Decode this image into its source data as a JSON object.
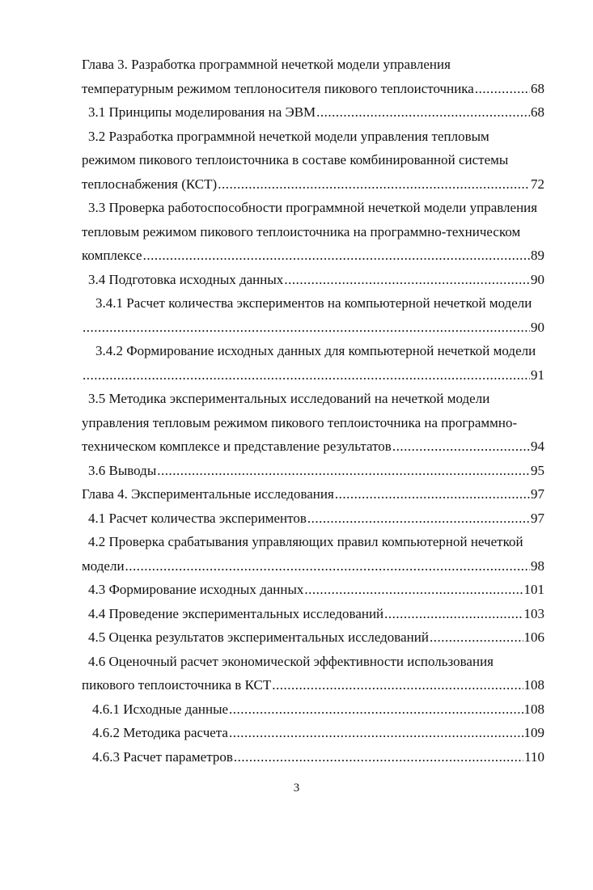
{
  "toc": {
    "entries": [
      {
        "level": 1,
        "lines": [
          "Глава 3. Разработка программной нечеткой модели управления",
          "температурным режимом теплоносителя пикового теплоисточника"
        ],
        "page": "68"
      },
      {
        "level": 2,
        "lines": [
          "3.1 Принципы моделирования на ЭВМ"
        ],
        "page": "68"
      },
      {
        "level": 2,
        "lines": [
          "3.2 Разработка программной нечеткой модели управления тепловым",
          "режимом пикового теплоисточника в составе комбинированной системы",
          "теплоснабжения (КСТ)"
        ],
        "page": "72"
      },
      {
        "level": 2,
        "lines": [
          "3.3 Проверка работоспособности программной нечеткой модели управления",
          "тепловым режимом пикового теплоисточника на программно-техническом",
          "комплексе"
        ],
        "page": "89"
      },
      {
        "level": 2,
        "lines": [
          "3.4 Подготовка исходных данных"
        ],
        "page": "90"
      },
      {
        "level": 3,
        "lines": [
          "3.4.1 Расчет количества экспериментов на компьютерной нечеткой модели",
          ""
        ],
        "page": "90"
      },
      {
        "level": 3,
        "lines": [
          "3.4.2 Формирование исходных данных для компьютерной нечеткой модели",
          ""
        ],
        "page": "91"
      },
      {
        "level": 2,
        "lines": [
          "3.5 Методика экспериментальных исследований на нечеткой модели",
          "управления тепловым режимом пикового теплоисточника на программно-",
          "техническом комплексе и представление результатов"
        ],
        "page": "94"
      },
      {
        "level": 2,
        "lines": [
          "3.6 Выводы"
        ],
        "page": "95"
      },
      {
        "level": 1,
        "lines": [
          "Глава 4. Экспериментальные исследования"
        ],
        "page": "97"
      },
      {
        "level": 2,
        "lines": [
          "4.1 Расчет количества экспериментов"
        ],
        "page": "97"
      },
      {
        "level": 2,
        "lines": [
          "4.2 Проверка срабатывания управляющих правил компьютерной нечеткой",
          "модели"
        ],
        "page": "98"
      },
      {
        "level": 2,
        "lines": [
          "4.3 Формирование исходных данных"
        ],
        "page": "101"
      },
      {
        "level": 2,
        "lines": [
          "4.4 Проведение экспериментальных исследований"
        ],
        "page": "103"
      },
      {
        "level": 2,
        "lines": [
          "4.5 Оценка результатов экспериментальных исследований"
        ],
        "page": "106"
      },
      {
        "level": 2,
        "lines": [
          "4.6 Оценочный расчет экономической эффективности использования",
          "пикового теплоисточника в КСТ"
        ],
        "page": "108"
      },
      {
        "level": 3,
        "lines": [
          "4.6.1 Исходные данные"
        ],
        "page": "108"
      },
      {
        "level": 3,
        "lines": [
          "4.6.2 Методика расчета"
        ],
        "page": "109"
      },
      {
        "level": 3,
        "lines": [
          "4.6.3 Расчет параметров"
        ],
        "page": "110"
      }
    ]
  },
  "page_number": "3"
}
